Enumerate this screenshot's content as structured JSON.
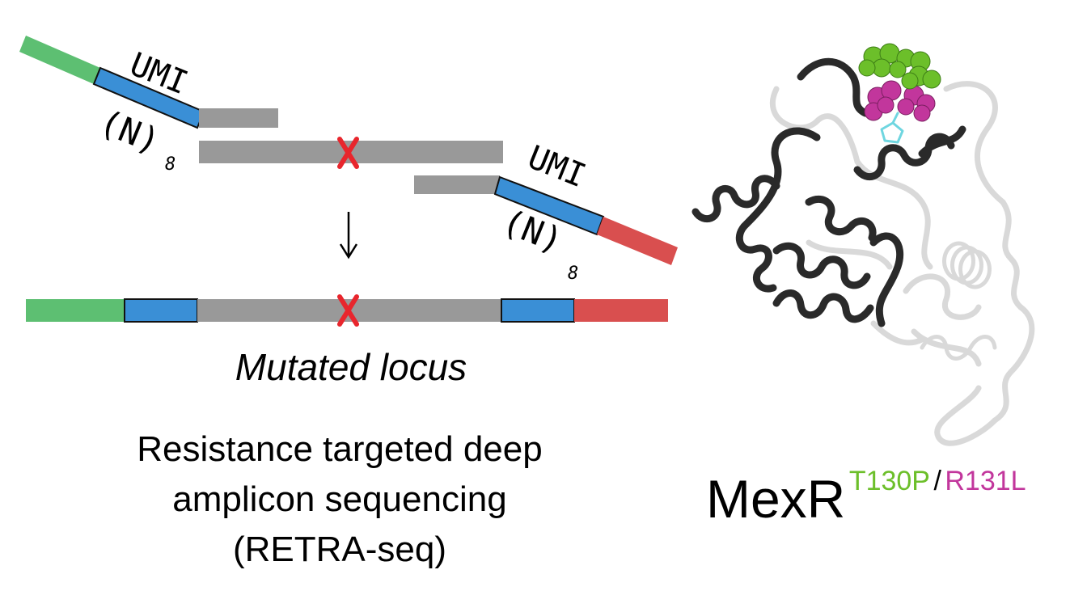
{
  "colors": {
    "adapter_left": "#5dbf72",
    "umi": "#3a8fd6",
    "template": "#999999",
    "adapter_right": "#d94f4f",
    "mutation_mark": "#e8262d",
    "protein_dark": "#2a2a2a",
    "protein_light": "#d9d9d9",
    "residue_t130p": "#6cbf2a",
    "residue_r131l": "#c2369c",
    "ligand": "#6fd6e0"
  },
  "primer_left": {
    "umi_label": "UMI",
    "n_label": "(N)",
    "n_subscript": "8"
  },
  "primer_right": {
    "umi_label": "UMI",
    "n_label": "(N)",
    "n_subscript": "8"
  },
  "product": {
    "label": "Mutated locus"
  },
  "method": {
    "line1": "Resistance targeted deep",
    "line2": "amplicon sequencing",
    "line3": "(RETRA-seq)"
  },
  "protein": {
    "name": "MexR",
    "mutation1": "T130P",
    "separator": "/",
    "mutation2": "R131L"
  }
}
